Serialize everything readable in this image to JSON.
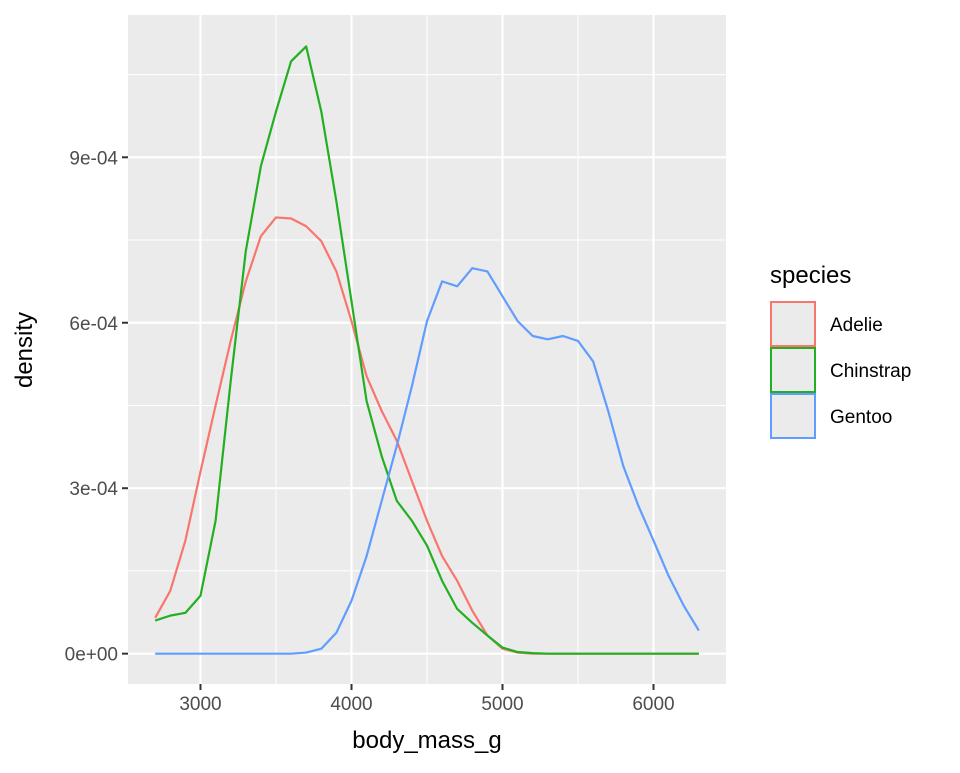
{
  "chart_data": {
    "type": "line",
    "x_label": "body_mass_g",
    "y_label": "density",
    "legend_title": "species",
    "x": [
      2700,
      2800,
      2900,
      3000,
      3100,
      3200,
      3300,
      3400,
      3500,
      3600,
      3700,
      3800,
      3900,
      4000,
      4100,
      4200,
      4300,
      4400,
      4500,
      4600,
      4700,
      4800,
      4900,
      5000,
      5100,
      5200,
      5300,
      5400,
      5500,
      5600,
      5700,
      5800,
      5900,
      6000,
      6100,
      6200,
      6300
    ],
    "series": [
      {
        "name": "Adelie",
        "color": "#F8766D",
        "values": [
          6.5e-05,
          0.000114,
          0.000205,
          0.00033,
          0.00045,
          0.000567,
          0.000675,
          0.000757,
          0.000791,
          0.000789,
          0.000775,
          0.000748,
          0.000693,
          0.000603,
          0.000503,
          0.00044,
          0.000386,
          0.000313,
          0.000241,
          0.000177,
          0.000132,
          7.8e-05,
          3.3e-05,
          9e-06,
          2e-06,
          0,
          0,
          0,
          0,
          0,
          0,
          0,
          0,
          0,
          0,
          0,
          0
        ]
      },
      {
        "name": "Chinstrap",
        "color": "#22B022",
        "values": [
          6e-05,
          6.9e-05,
          7.4e-05,
          0.000105,
          0.000241,
          0.000494,
          0.00073,
          0.000884,
          0.000983,
          0.001074,
          0.001101,
          0.000983,
          0.00082,
          0.000639,
          0.000458,
          0.000358,
          0.000277,
          0.000241,
          0.000196,
          0.000132,
          8.1e-05,
          5.6e-05,
          3.3e-05,
          1.1e-05,
          3e-06,
          1e-06,
          0,
          0,
          0,
          0,
          0,
          0,
          0,
          0,
          0,
          0,
          0
        ]
      },
      {
        "name": "Gentoo",
        "color": "#619CFF",
        "values": [
          0,
          0,
          0,
          0,
          0,
          0,
          0,
          0,
          0,
          0,
          2e-06,
          9e-06,
          3.8e-05,
          9.6e-05,
          0.000177,
          0.000277,
          0.000377,
          0.000485,
          0.000603,
          0.000675,
          0.000666,
          0.000699,
          0.000693,
          0.000648,
          0.000603,
          0.000576,
          0.00057,
          0.000576,
          0.000567,
          0.00053,
          0.00044,
          0.00034,
          0.000268,
          0.000205,
          0.000141,
          8.7e-05,
          4.2e-05
        ]
      }
    ],
    "xlim": [
      2520,
      6480
    ],
    "xticks": [
      3000,
      4000,
      5000,
      6000
    ],
    "ylim": [
      -5.5e-05,
      0.001158
    ],
    "yticks": [
      {
        "value": 0,
        "label": "0e+00"
      },
      {
        "value": 0.0003,
        "label": "3e-04"
      },
      {
        "value": 0.0006,
        "label": "6e-04"
      },
      {
        "value": 0.0009,
        "label": "9e-04"
      }
    ],
    "grid": true,
    "legend_position": "right"
  }
}
